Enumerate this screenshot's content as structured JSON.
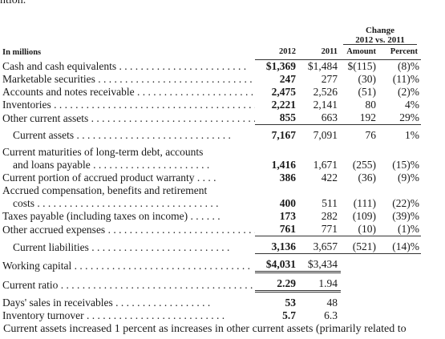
{
  "top_fragment": "ntion.",
  "header": {
    "change_title": "Change",
    "change_sub": "2012 vs. 2011",
    "units": "In millions",
    "col_2012": "2012",
    "col_2011": "2011",
    "col_amount": "Amount",
    "col_percent": "Percent"
  },
  "rows": [
    {
      "label": "Cash and cash equivalents",
      "v2012": "$1,369",
      "v2011": "$1,484",
      "amount": "$(115)",
      "percent": "(8)%"
    },
    {
      "label": "Marketable securities",
      "v2012": "247",
      "v2011": "277",
      "amount": "(30)",
      "percent": "(11)%"
    },
    {
      "label": "Accounts and notes receivable",
      "v2012": "2,475",
      "v2011": "2,526",
      "amount": "(51)",
      "percent": "(2)%"
    },
    {
      "label": "Inventories",
      "v2012": "2,221",
      "v2011": "2,141",
      "amount": "80",
      "percent": "4%"
    },
    {
      "label": "Other current assets",
      "v2012": "855",
      "v2011": "663",
      "amount": "192",
      "percent": "29%"
    },
    {
      "label": "Current assets",
      "v2012": "7,167",
      "v2011": "7,091",
      "amount": "76",
      "percent": "1%"
    },
    {
      "label_1": "Current maturities of long-term debt, accounts",
      "label_2": "and loans payable",
      "v2012": "1,416",
      "v2011": "1,671",
      "amount": "(255)",
      "percent": "(15)%"
    },
    {
      "label": "Current portion of accrued product warranty",
      "v2012": "386",
      "v2011": "422",
      "amount": "(36)",
      "percent": "(9)%"
    },
    {
      "label_1": "Accrued compensation, benefits and retirement",
      "label_2": "costs",
      "v2012": "400",
      "v2011": "511",
      "amount": "(111)",
      "percent": "(22)%"
    },
    {
      "label": "Taxes payable (including taxes on income)",
      "v2012": "173",
      "v2011": "282",
      "amount": "(109)",
      "percent": "(39)%"
    },
    {
      "label": "Other accrued expenses",
      "v2012": "761",
      "v2011": "771",
      "amount": "(10)",
      "percent": "(1)%"
    },
    {
      "label": "Current liabilities",
      "v2012": "3,136",
      "v2011": "3,657",
      "amount": "(521)",
      "percent": "(14)%"
    },
    {
      "label": "Working capital",
      "v2012": "$4,031",
      "v2011": "$3,434"
    },
    {
      "label": "Current ratio",
      "v2012": "2.29",
      "v2011": "1.94"
    },
    {
      "label": "Days' sales in receivables",
      "v2012": "53",
      "v2011": "48"
    },
    {
      "label": "Inventory turnover",
      "v2012": "5.7",
      "v2011": "6.3"
    }
  ],
  "bottom_fragment": "Current assets increased 1 percent as increases in other current assets (primarily related to"
}
